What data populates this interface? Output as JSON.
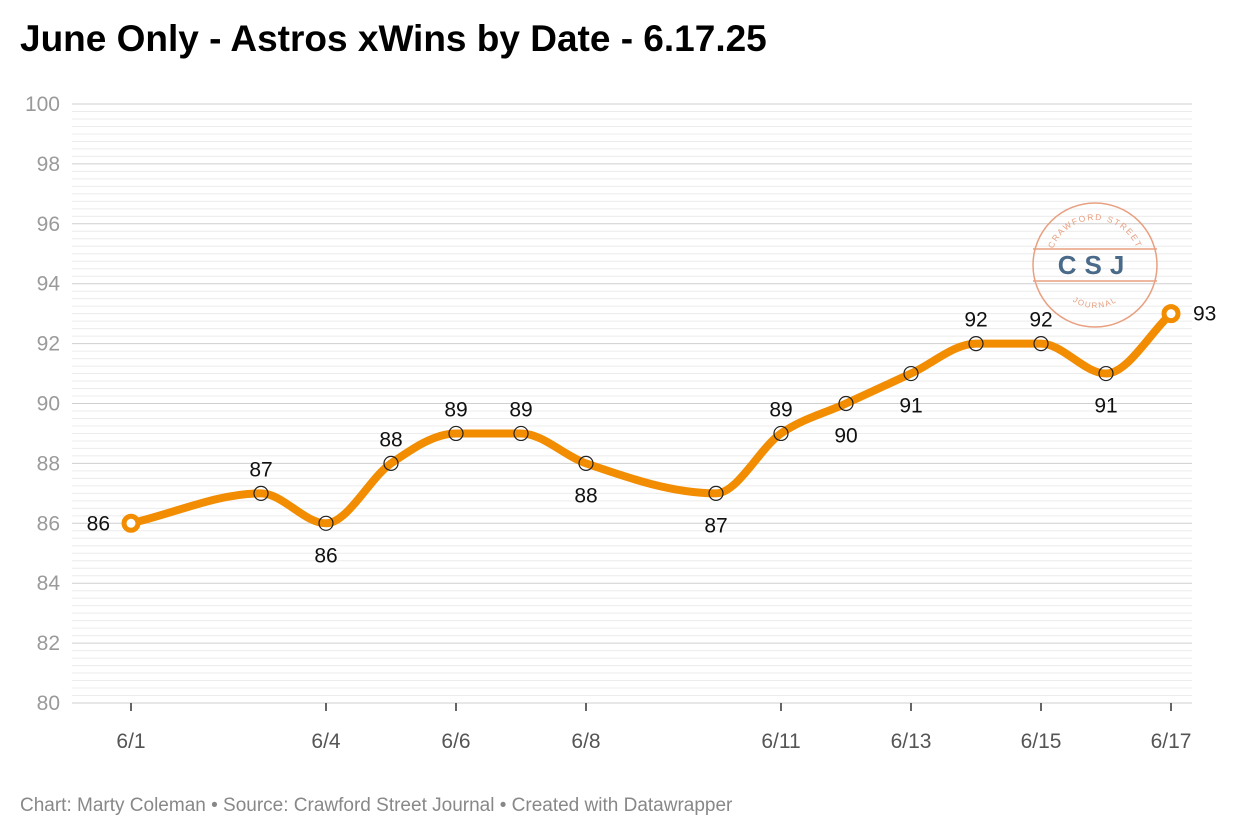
{
  "title": "June Only - Astros xWins by Date - 6.17.25",
  "footer": "Chart: Marty Coleman • Source: Crawford Street Journal • Created with Datawrapper",
  "logo": {
    "initials": "CSJ",
    "top_text": "CRAWFORD STREET",
    "bottom_text": "JOURNAL",
    "color": "#e8a080",
    "initials_color": "#4a6a8a"
  },
  "chart_data": {
    "type": "line",
    "title": "June Only - Astros xWins by Date - 6.17.25",
    "xlabel": "",
    "ylabel": "",
    "x": [
      "6/1",
      "6/3",
      "6/4",
      "6/5",
      "6/6",
      "6/7",
      "6/8",
      "6/10",
      "6/11",
      "6/12",
      "6/13",
      "6/14",
      "6/15",
      "6/16",
      "6/17"
    ],
    "xticks": [
      "6/1",
      "6/4",
      "6/6",
      "6/8",
      "6/11",
      "6/13",
      "6/15",
      "6/17"
    ],
    "ylim": [
      80,
      100
    ],
    "yticks": [
      80,
      82,
      84,
      86,
      88,
      90,
      92,
      94,
      96,
      98,
      100
    ],
    "series": [
      {
        "values": [
          86,
          87,
          86,
          88,
          89,
          89,
          88,
          87,
          89,
          90,
          91,
          92,
          92,
          91,
          93
        ],
        "label_position": [
          "left",
          "above",
          "below",
          "above",
          "above",
          "above",
          "below",
          "below",
          "above",
          "below",
          "below",
          "above",
          "above",
          "below",
          "right"
        ]
      }
    ],
    "line_color": "#f28c00",
    "grid": true,
    "legend": "none"
  }
}
